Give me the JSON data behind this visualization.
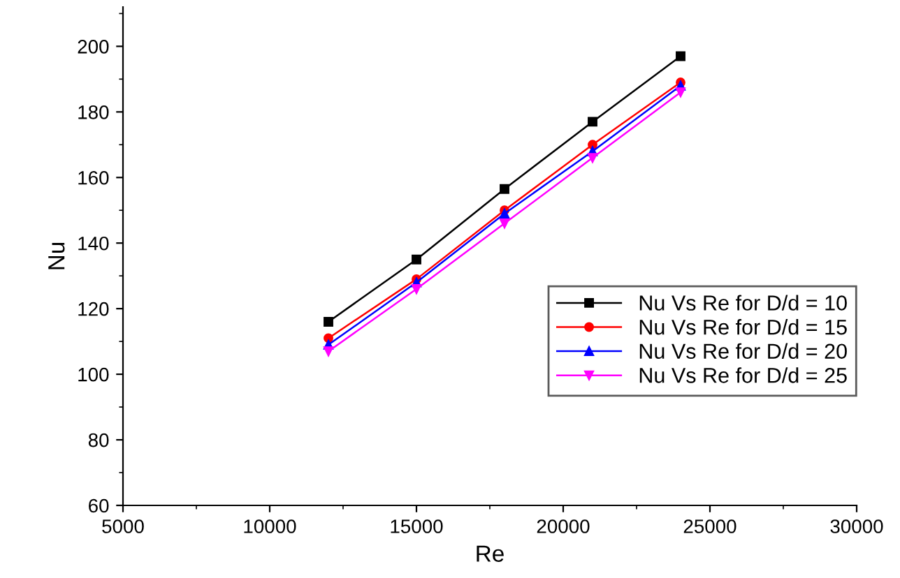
{
  "chart_data": {
    "type": "line",
    "xlabel": "Re",
    "ylabel": "Nu",
    "x": [
      12000,
      15000,
      18000,
      21000,
      24000
    ],
    "series": [
      {
        "name": "Nu Vs Re for D/d = 10",
        "color": "#000000",
        "marker": "square",
        "values": [
          116,
          135,
          156.5,
          177,
          197
        ]
      },
      {
        "name": "Nu Vs Re for D/d = 15",
        "color": "#ff0000",
        "marker": "circle",
        "values": [
          111,
          129,
          150,
          170,
          189
        ]
      },
      {
        "name": "Nu Vs Re for D/d = 20",
        "color": "#0000ff",
        "marker": "triangle",
        "values": [
          109,
          128,
          149,
          168,
          188
        ]
      },
      {
        "name": "Nu Vs Re for D/d = 25",
        "color": "#ff00ff",
        "marker": "triangle_down",
        "values": [
          107,
          126,
          146,
          166,
          186
        ]
      }
    ],
    "xlim": [
      5000,
      30000
    ],
    "xticks": [
      5000,
      10000,
      15000,
      20000,
      25000,
      30000
    ],
    "ylim": [
      60,
      212
    ],
    "yticks": [
      60,
      80,
      100,
      120,
      140,
      160,
      180,
      200
    ],
    "grid": false,
    "legend": "right",
    "line_style": "solid"
  }
}
